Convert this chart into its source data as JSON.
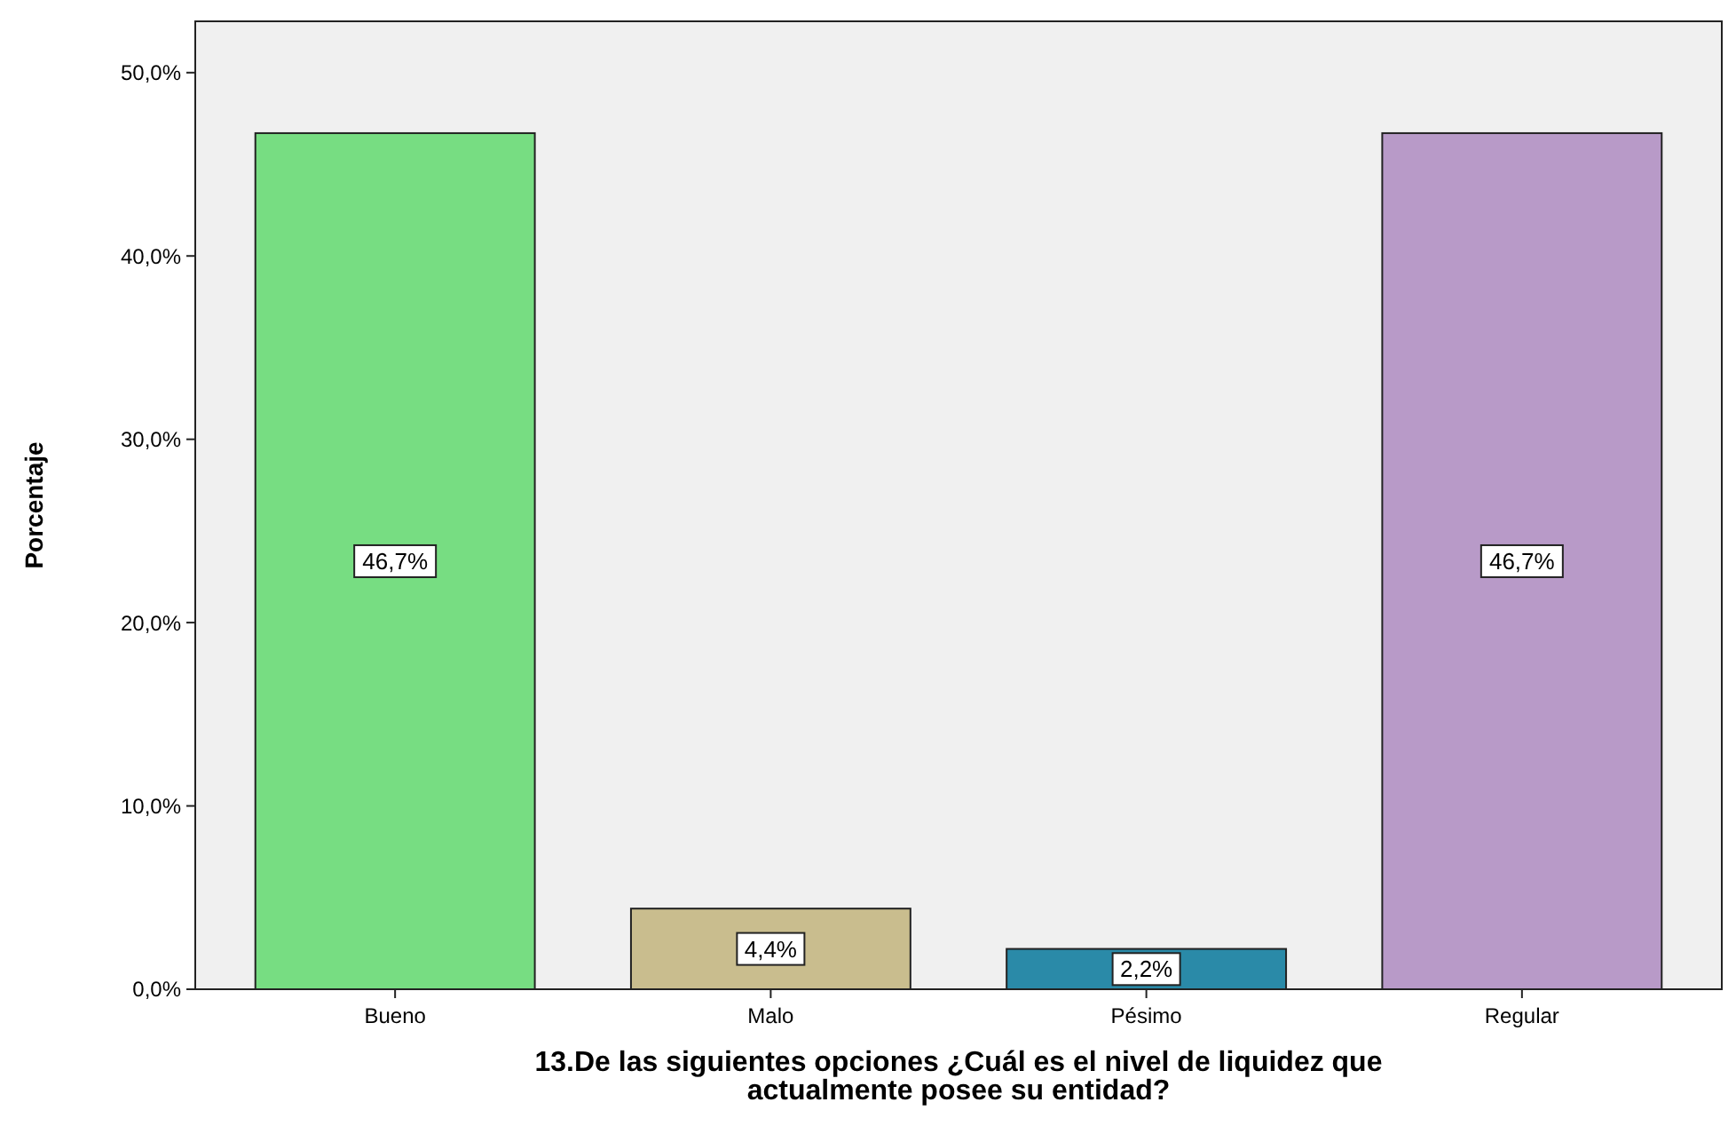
{
  "chart_data": {
    "type": "bar",
    "xlabel": "13.De las siguientes opciones ¿Cuál es el nivel de liquidez que actualmente posee su entidad?",
    "ylabel": "Porcentaje",
    "categories": [
      "Bueno",
      "Malo",
      "Pésimo",
      "Regular"
    ],
    "values": [
      46.7,
      4.4,
      2.2,
      46.7
    ],
    "colors": [
      "#77dd82",
      "#c9bd8e",
      "#2a8aa8",
      "#b89ac8"
    ],
    "value_labels": [
      "46,7%",
      "4,4%",
      "2,2%",
      "46,7%"
    ],
    "ylim": [
      0,
      52.8
    ],
    "yticks": [
      {
        "value": 0,
        "label": "0,0%"
      },
      {
        "value": 10,
        "label": "10,0%"
      },
      {
        "value": 20,
        "label": "20,0%"
      },
      {
        "value": 30,
        "label": "30,0%"
      },
      {
        "value": 40,
        "label": "40,0%"
      },
      {
        "value": 50,
        "label": "50,0%"
      }
    ]
  }
}
